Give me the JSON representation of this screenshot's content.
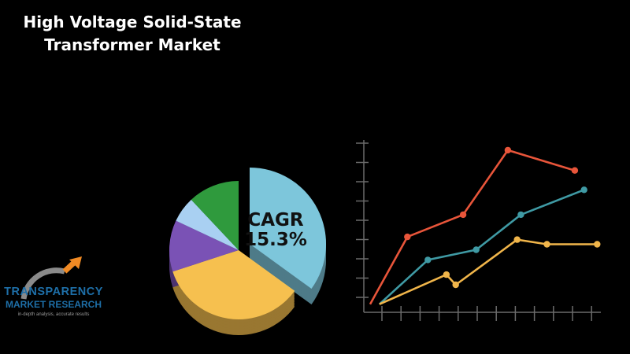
{
  "title_lines": [
    "High Voltage Solid-State",
    "Transformer Market"
  ],
  "cagr": {
    "label": "CAGR",
    "value": "15.3%"
  },
  "logo": {
    "line1": "TRANSPARENCY",
    "line2": "MARKET RESEARCH",
    "tagline": "in-depth analysis, accurate results"
  },
  "colors": {
    "background": "#000000",
    "red_series": "#e8553a",
    "teal_series": "#3f9aa4",
    "yellow_series": "#f0b54a",
    "pie_cagr_slice": "#7dc6db",
    "pie_yellow": "#f6c04f",
    "pie_purple": "#7a52b5",
    "pie_lightblue": "#a9d0f2",
    "pie_green": "#2f9a3d",
    "axis": "#6b6b6b"
  },
  "chart_data": [
    {
      "type": "line",
      "title": "",
      "xlabel": "",
      "ylabel": "",
      "ylim": [
        0,
        9
      ],
      "x_ticks": 12,
      "y_ticks": 9,
      "grid": false,
      "legend": "none",
      "series": [
        {
          "color": "#e8553a",
          "x": [
            0,
            2,
            5,
            7.4,
            11
          ],
          "y": [
            0.1,
            3.75,
            4.95,
            8.45,
            7.35
          ]
        },
        {
          "color": "#3f9aa4",
          "x": [
            0.5,
            3.1,
            5.7,
            8.1,
            11.5
          ],
          "y": [
            0.1,
            2.5,
            3.05,
            4.95,
            6.3
          ]
        },
        {
          "color": "#f0b54a",
          "x": [
            0.5,
            4.1,
            4.6,
            7.9,
            9.5,
            12.2
          ],
          "y": [
            0.1,
            1.7,
            1.15,
            3.6,
            3.35,
            3.35
          ]
        }
      ]
    },
    {
      "type": "pie",
      "title": "",
      "legend": "none",
      "slices": [
        {
          "label": "CAGR 15.3%",
          "value": 35,
          "color": "#7dc6db"
        },
        {
          "label": "",
          "value": 35,
          "color": "#f6c04f"
        },
        {
          "label": "",
          "value": 12,
          "color": "#7a52b5"
        },
        {
          "label": "",
          "value": 6,
          "color": "#a9d0f2"
        },
        {
          "label": "",
          "value": 12,
          "color": "#2f9a3d"
        }
      ]
    }
  ]
}
